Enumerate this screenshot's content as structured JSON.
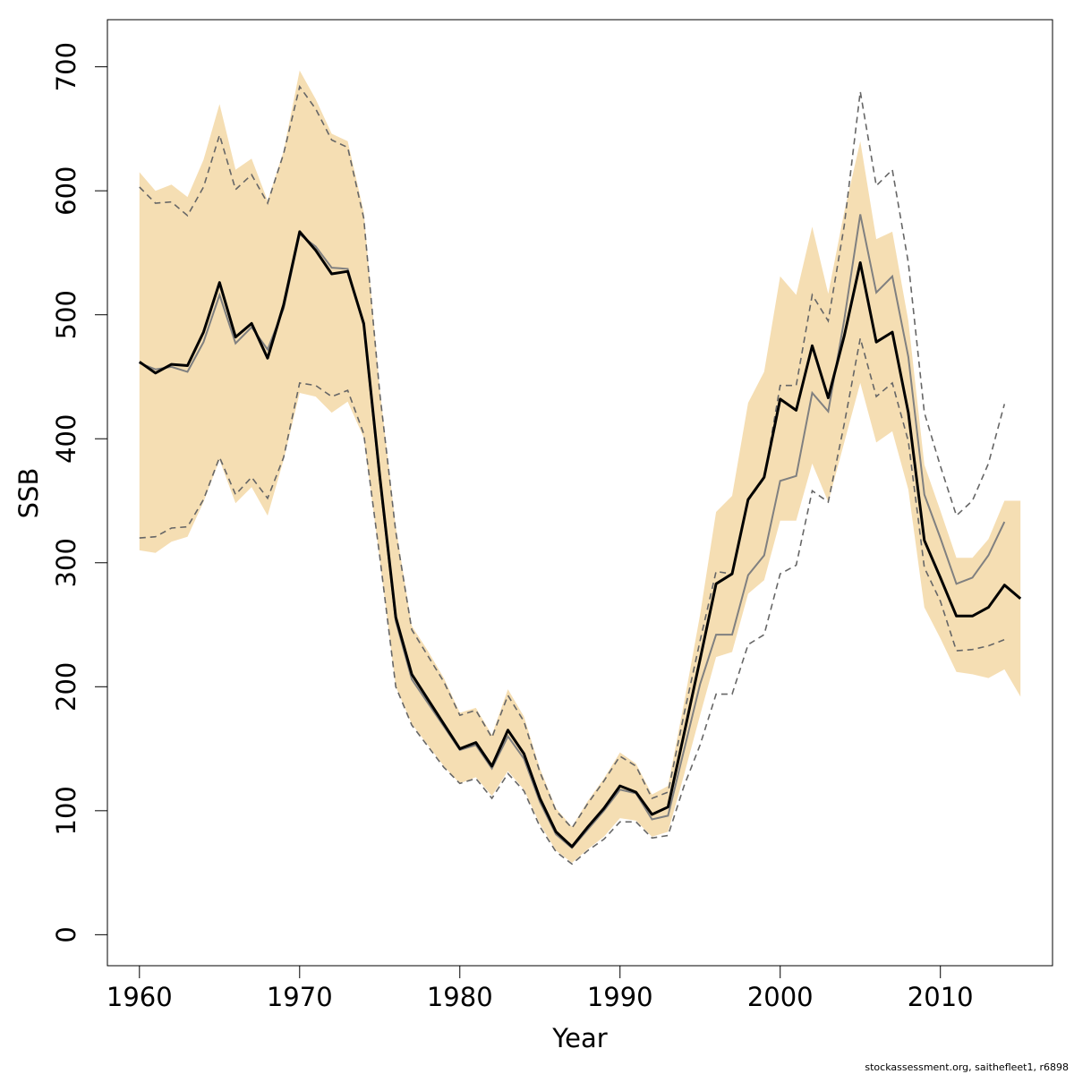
{
  "chart_data": {
    "type": "line",
    "xlabel": "Year",
    "ylabel": "SSB",
    "xlim": [
      1958,
      2017
    ],
    "ylim": [
      -25,
      738
    ],
    "x_ticks": [
      1960,
      1970,
      1980,
      1990,
      2000,
      2010
    ],
    "y_ticks": [
      0,
      100,
      200,
      300,
      400,
      500,
      600,
      700
    ],
    "footer": "stockassessment.org, saithefleet1, r6898",
    "colors": {
      "band": "#f5deb3",
      "estimate": "#000000",
      "previous": "#808080",
      "previous_ci": "#666666"
    },
    "years": [
      1960,
      1961,
      1962,
      1963,
      1964,
      1965,
      1966,
      1967,
      1968,
      1969,
      1970,
      1971,
      1972,
      1973,
      1974,
      1975,
      1976,
      1977,
      1978,
      1979,
      1980,
      1981,
      1982,
      1983,
      1984,
      1985,
      1986,
      1987,
      1988,
      1989,
      1990,
      1991,
      1992,
      1993,
      1994,
      1995,
      1996,
      1997,
      1998,
      1999,
      2000,
      2001,
      2002,
      2003,
      2004,
      2005,
      2006,
      2007,
      2008,
      2009,
      2010,
      2011,
      2012,
      2013,
      2014,
      2015
    ],
    "series": [
      {
        "role": "estimate",
        "values": [
          462,
          453,
          460,
          459,
          486,
          526,
          482,
          493,
          465,
          508,
          567,
          552,
          533,
          535,
          493,
          370,
          256,
          210,
          190,
          170,
          150,
          155,
          136,
          165,
          146,
          110,
          83,
          71,
          87,
          102,
          120,
          115,
          97,
          103,
          162,
          222,
          283,
          291,
          351,
          369,
          432,
          423,
          475,
          433,
          483,
          542,
          478,
          486,
          421,
          318,
          288,
          257,
          257,
          264,
          282,
          271
        ]
      },
      {
        "role": "ci_upper",
        "values": [
          615,
          600,
          605,
          595,
          625,
          670,
          617,
          626,
          592,
          632,
          697,
          674,
          646,
          640,
          583,
          440,
          329,
          249,
          229,
          207,
          179,
          183,
          161,
          198,
          176,
          134,
          102,
          87,
          108,
          126,
          147,
          138,
          113,
          120,
          187,
          258,
          341,
          354,
          429,
          454,
          531,
          516,
          571,
          517,
          583,
          640,
          561,
          567,
          495,
          379,
          342,
          304,
          304,
          319,
          350,
          350
        ]
      },
      {
        "role": "ci_lower",
        "values": [
          310,
          308,
          317,
          321,
          349,
          383,
          348,
          361,
          338,
          383,
          437,
          434,
          421,
          430,
          401,
          303,
          200,
          170,
          153,
          136,
          122,
          127,
          112,
          132,
          117,
          89,
          68,
          58,
          69,
          79,
          94,
          92,
          79,
          83,
          129,
          177,
          224,
          228,
          275,
          286,
          334,
          334,
          380,
          349,
          397,
          445,
          397,
          406,
          359,
          264,
          239,
          212,
          210,
          207,
          214,
          192
        ]
      },
      {
        "role": "previous",
        "values": [
          461,
          456,
          458,
          454,
          478,
          516,
          477,
          490,
          472,
          505,
          565,
          555,
          538,
          537,
          491,
          367,
          253,
          206,
          187,
          168,
          149,
          153,
          134,
          160,
          142,
          107,
          81,
          70,
          85,
          100,
          117,
          114,
          93,
          96,
          149,
          202,
          242,
          242,
          290,
          306,
          366,
          370,
          437,
          422,
          496,
          581,
          518,
          531,
          466,
          355,
          320,
          283,
          288,
          306,
          333
        ]
      },
      {
        "role": "previous_ci_upper",
        "values": [
          603,
          590,
          591,
          580,
          603,
          645,
          601,
          613,
          590,
          630,
          684,
          666,
          641,
          635,
          578,
          437,
          325,
          246,
          225,
          204,
          177,
          181,
          159,
          193,
          172,
          131,
          100,
          86,
          106,
          124,
          144,
          136,
          110,
          115,
          178,
          237,
          293,
          291,
          350,
          368,
          443,
          443,
          516,
          495,
          572,
          680,
          604,
          617,
          542,
          421,
          378,
          338,
          350,
          380,
          428
        ]
      },
      {
        "role": "previous_ci_lower",
        "values": [
          320,
          321,
          328,
          329,
          351,
          385,
          355,
          369,
          352,
          385,
          445,
          443,
          434,
          439,
          404,
          305,
          200,
          169,
          152,
          135,
          122,
          126,
          110,
          130,
          116,
          87,
          67,
          57,
          68,
          77,
          91,
          91,
          78,
          80,
          120,
          153,
          194,
          194,
          234,
          242,
          291,
          298,
          358,
          349,
          412,
          481,
          434,
          445,
          398,
          296,
          269,
          229,
          230,
          233,
          238
        ]
      }
    ]
  }
}
